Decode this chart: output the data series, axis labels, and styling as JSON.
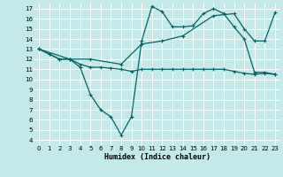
{
  "xlabel": "Humidex (Indice chaleur)",
  "bg_color": "#c5e8e8",
  "grid_color": "#ffffff",
  "line_color": "#006666",
  "xlim": [
    -0.5,
    23.5
  ],
  "ylim": [
    3.5,
    17.5
  ],
  "xticks": [
    0,
    1,
    2,
    3,
    4,
    5,
    6,
    7,
    8,
    9,
    10,
    11,
    12,
    13,
    14,
    15,
    16,
    17,
    18,
    19,
    20,
    21,
    22,
    23
  ],
  "yticks": [
    4,
    5,
    6,
    7,
    8,
    9,
    10,
    11,
    12,
    13,
    14,
    15,
    16,
    17
  ],
  "series": {
    "line1_x": [
      0,
      1,
      2,
      3,
      4,
      5,
      6,
      7,
      8,
      9,
      10,
      11,
      12,
      13,
      14,
      15,
      16,
      17,
      18,
      19,
      20,
      21,
      22,
      23
    ],
    "line1_y": [
      13,
      12.5,
      12,
      12,
      11.2,
      8.5,
      7,
      6.3,
      4.5,
      6.3,
      13.8,
      17.2,
      16.7,
      15.2,
      15.2,
      15.3,
      16.5,
      17,
      16.5,
      15.2,
      14,
      10.7,
      10.7,
      10.5
    ],
    "line2_x": [
      0,
      1,
      2,
      3,
      4,
      5,
      6,
      7,
      8,
      9,
      10,
      11,
      12,
      13,
      14,
      15,
      16,
      17,
      18,
      19,
      20,
      21,
      22,
      23
    ],
    "line2_y": [
      13,
      12.5,
      12,
      12,
      11.5,
      11.2,
      11.2,
      11.1,
      11.0,
      10.8,
      11.0,
      11.0,
      11.0,
      11.0,
      11.0,
      11.0,
      11.0,
      11.0,
      11.0,
      10.8,
      10.6,
      10.5,
      10.6,
      10.5
    ],
    "line3_x": [
      0,
      3,
      5,
      8,
      10,
      12,
      14,
      17,
      19,
      20,
      21,
      22,
      23
    ],
    "line3_y": [
      13,
      12,
      12,
      11.5,
      13.5,
      13.8,
      14.3,
      16.3,
      16.5,
      15.0,
      13.8,
      13.8,
      16.6
    ]
  }
}
